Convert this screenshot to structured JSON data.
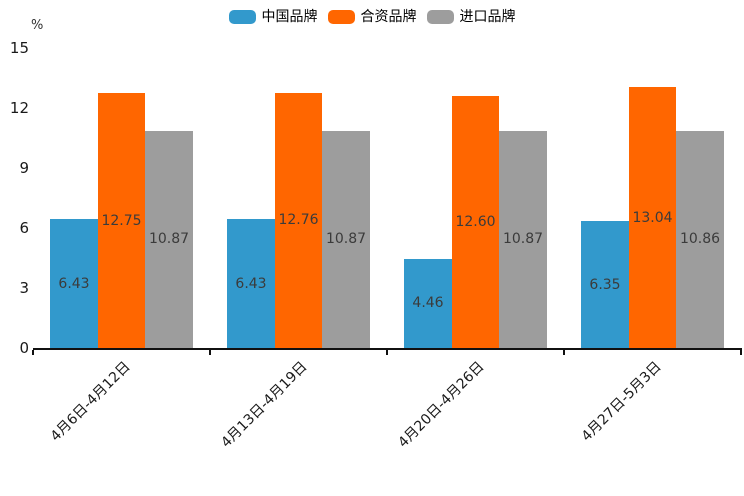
{
  "chart_data": {
    "type": "bar",
    "title": "",
    "unit": "%",
    "categories": [
      "4月6日-4月12日",
      "4月13日-4月19日",
      "4月20日-4月26日",
      "4月27日-5月3日"
    ],
    "series": [
      {
        "name": "中国品牌",
        "color": "#3299CC",
        "values": [
          6.43,
          6.43,
          4.46,
          6.35
        ]
      },
      {
        "name": "合资品牌",
        "color": "#FF6600",
        "values": [
          12.75,
          12.76,
          12.6,
          13.04
        ]
      },
      {
        "name": "进口品牌",
        "color": "#9D9D9D",
        "values": [
          10.87,
          10.87,
          10.87,
          10.86
        ]
      }
    ],
    "yticks": [
      0,
      3,
      6,
      9,
      12,
      15
    ],
    "ylim": [
      0,
      15
    ],
    "xlabel": "",
    "ylabel": "%",
    "grid": false,
    "legend_position": "top-center",
    "bar_label_position": "center",
    "label_decimals": 2,
    "xlabel_rotation_deg": -45
  }
}
